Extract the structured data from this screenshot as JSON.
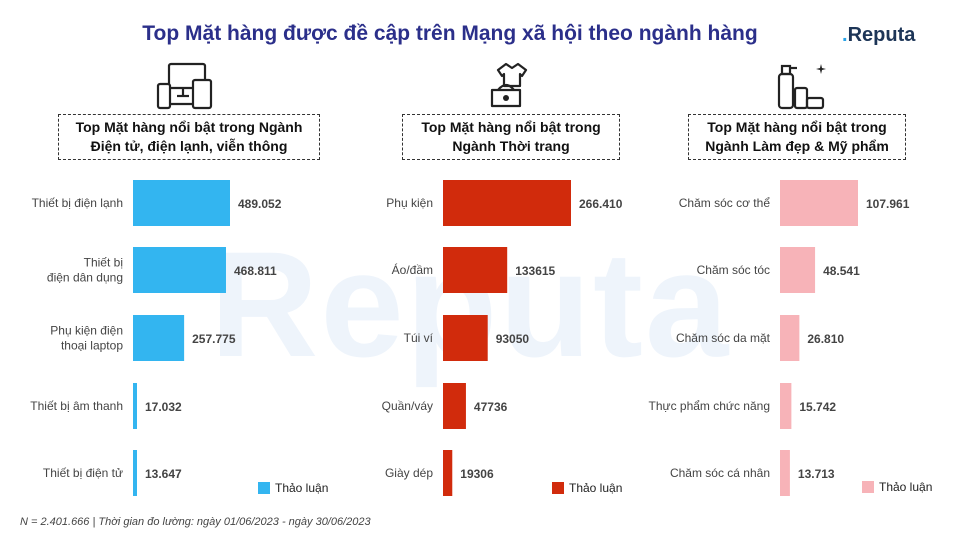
{
  "title": "Top Mặt hàng được đề cập trên Mạng xã hội theo ngành hàng",
  "logo": {
    "prefix": ".",
    "text": "Reputa"
  },
  "watermark": "Reputa",
  "footnote": "N = 2.401.666 | Thời gian đo lường: ngày 01/06/2023 - ngày 30/06/2023",
  "icons": [
    "devices-icon",
    "clothing-icon",
    "cosmetics-icon"
  ],
  "chart_data": [
    {
      "type": "bar",
      "orientation": "horizontal",
      "title_lines": [
        "Top Mặt hàng nổi bật trong Ngành",
        "Điện tử, điện lạnh, viễn thông"
      ],
      "categories": [
        [
          "Thiết bị điện lạnh"
        ],
        [
          "Thiết bị",
          "điện dân dụng"
        ],
        [
          "Phụ kiện điện",
          "thoại laptop"
        ],
        [
          "Thiết bị âm thanh"
        ],
        [
          "Thiết bị điện tử"
        ]
      ],
      "values": [
        489052,
        468811,
        257775,
        17032,
        13647
      ],
      "value_labels": [
        "489.052",
        "468.811",
        "257.775",
        "17.032",
        "13.647"
      ],
      "series": [
        {
          "name": "Thảo luận",
          "color": "#33b5f0"
        }
      ],
      "xlim": [
        0,
        489052
      ]
    },
    {
      "type": "bar",
      "orientation": "horizontal",
      "title_lines": [
        "Top Mặt hàng nổi bật trong",
        "Ngành Thời trang"
      ],
      "categories": [
        [
          "Phụ kiện"
        ],
        [
          "Áo/đầm"
        ],
        [
          "Túi ví"
        ],
        [
          "Quần/váy"
        ],
        [
          "Giày dép"
        ]
      ],
      "values": [
        266410,
        133615,
        93050,
        47736,
        19306
      ],
      "value_labels": [
        "266.410",
        "133615",
        "93050",
        "47736",
        "19306"
      ],
      "series": [
        {
          "name": "Thảo luận",
          "color": "#d12b0c"
        }
      ],
      "xlim": [
        0,
        266410
      ]
    },
    {
      "type": "bar",
      "orientation": "horizontal",
      "title_lines": [
        "Top Mặt hàng nổi bật trong",
        "Ngành Làm đẹp & Mỹ phẩm"
      ],
      "categories": [
        [
          "Chăm sóc cơ thể"
        ],
        [
          "Chăm sóc tóc"
        ],
        [
          "Chăm sóc da mặt"
        ],
        [
          "Thực phẩm chức năng"
        ],
        [
          "Chăm sóc cá nhân"
        ]
      ],
      "values": [
        107961,
        48541,
        26810,
        15742,
        13713
      ],
      "value_labels": [
        "107.961",
        "48.541",
        "26.810",
        "15.742",
        "13.713"
      ],
      "series": [
        {
          "name": "Thảo luận",
          "color": "#f7b3b8"
        }
      ],
      "xlim": [
        0,
        107961
      ]
    }
  ]
}
